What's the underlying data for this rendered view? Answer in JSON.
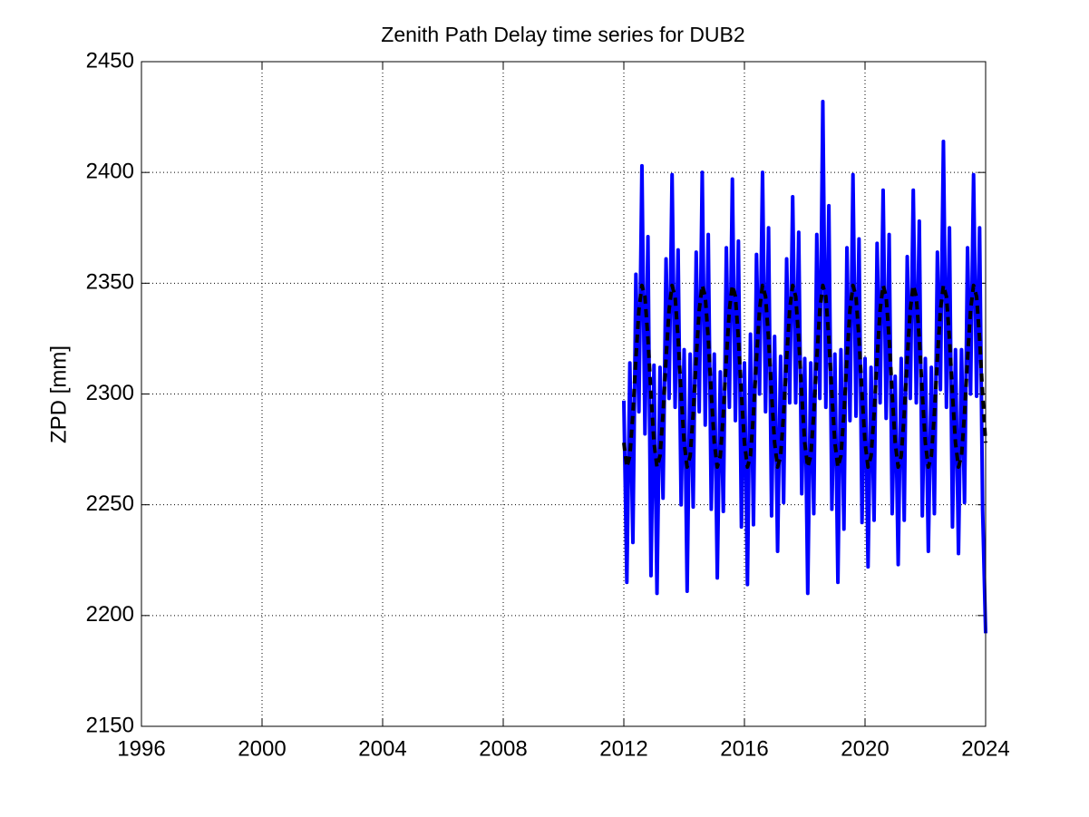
{
  "chart_data": {
    "type": "line",
    "title": "Zenith Path Delay time series for DUB2",
    "y_label": "ZPD [mm]",
    "xlim": [
      1996,
      2024
    ],
    "xticks": [
      1996,
      2000,
      2004,
      2008,
      2012,
      2016,
      2020,
      2024
    ],
    "ylim": [
      2150,
      2450
    ],
    "yticks": [
      2150,
      2200,
      2250,
      2300,
      2350,
      2400,
      2450
    ],
    "grid": true,
    "x": [
      2012,
      2012.1,
      2012.2,
      2012.3,
      2012.4,
      2012.5,
      2012.6,
      2012.7,
      2012.8,
      2012.9,
      2013,
      2013.1,
      2013.2,
      2013.3,
      2013.4,
      2013.5,
      2013.6,
      2013.7,
      2013.8,
      2013.9,
      2014,
      2014.1,
      2014.2,
      2014.3,
      2014.4,
      2014.5,
      2014.6,
      2014.7,
      2014.8,
      2014.9,
      2015,
      2015.1,
      2015.2,
      2015.3,
      2015.4,
      2015.5,
      2015.6,
      2015.7,
      2015.8,
      2015.9,
      2016,
      2016.1,
      2016.2,
      2016.3,
      2016.4,
      2016.5,
      2016.6,
      2016.7,
      2016.8,
      2016.9,
      2017,
      2017.1,
      2017.2,
      2017.3,
      2017.4,
      2017.5,
      2017.6,
      2017.7,
      2017.8,
      2017.9,
      2018,
      2018.1,
      2018.2,
      2018.3,
      2018.4,
      2018.5,
      2018.6,
      2018.7,
      2018.8,
      2018.9,
      2019,
      2019.1,
      2019.2,
      2019.3,
      2019.4,
      2019.5,
      2019.6,
      2019.7,
      2019.8,
      2019.9,
      2020,
      2020.1,
      2020.2,
      2020.3,
      2020.4,
      2020.5,
      2020.6,
      2020.7,
      2020.8,
      2020.9,
      2021,
      2021.1,
      2021.2,
      2021.3,
      2021.4,
      2021.5,
      2021.6,
      2021.7,
      2021.8,
      2021.9,
      2022,
      2022.1,
      2022.2,
      2022.3,
      2022.4,
      2022.5,
      2022.6,
      2022.7,
      2022.8,
      2022.9,
      2023,
      2023.1,
      2023.2,
      2023.3,
      2023.4,
      2023.5,
      2023.6,
      2023.7,
      2023.8,
      2023.9,
      2024
    ],
    "series": [
      {
        "color": "#0000ff",
        "line_style": "solid",
        "values": [
          2297,
          2215,
          2314,
          2233,
          2354,
          2292,
          2403,
          2282,
          2371,
          2218,
          2313,
          2210,
          2312,
          2253,
          2361,
          2298,
          2399,
          2294,
          2365,
          2250,
          2320,
          2211,
          2318,
          2249,
          2364,
          2292,
          2400,
          2286,
          2372,
          2248,
          2318,
          2217,
          2310,
          2247,
          2366,
          2294,
          2397,
          2288,
          2369,
          2240,
          2314,
          2214,
          2327,
          2241,
          2363,
          2300,
          2400,
          2292,
          2375,
          2245,
          2326,
          2229,
          2317,
          2251,
          2361,
          2296,
          2389,
          2296,
          2373,
          2255,
          2316,
          2210,
          2314,
          2246,
          2372,
          2298,
          2432,
          2294,
          2385,
          2248,
          2318,
          2215,
          2320,
          2239,
          2366,
          2288,
          2399,
          2290,
          2370,
          2242,
          2316,
          2222,
          2312,
          2243,
          2368,
          2296,
          2392,
          2289,
          2372,
          2246,
          2308,
          2223,
          2316,
          2243,
          2362,
          2298,
          2392,
          2296,
          2378,
          2245,
          2316,
          2229,
          2312,
          2246,
          2364,
          2302,
          2414,
          2294,
          2375,
          2240,
          2320,
          2228,
          2320,
          2251,
          2366,
          2300,
          2399,
          2299,
          2375,
          2248,
          2192
        ]
      },
      {
        "color": "#000000",
        "line_style": "dashed",
        "values": [
          2278,
          2267,
          2272,
          2291,
          2316,
          2338,
          2349,
          2344,
          2325,
          2300,
          2278,
          2267,
          2272,
          2291,
          2316,
          2338,
          2349,
          2344,
          2325,
          2300,
          2278,
          2267,
          2272,
          2291,
          2316,
          2338,
          2349,
          2344,
          2325,
          2300,
          2278,
          2267,
          2272,
          2291,
          2316,
          2338,
          2349,
          2344,
          2325,
          2300,
          2278,
          2267,
          2272,
          2291,
          2316,
          2338,
          2349,
          2344,
          2325,
          2300,
          2278,
          2267,
          2272,
          2291,
          2316,
          2338,
          2349,
          2344,
          2325,
          2300,
          2278,
          2267,
          2272,
          2291,
          2316,
          2338,
          2349,
          2344,
          2325,
          2300,
          2278,
          2267,
          2272,
          2291,
          2316,
          2338,
          2349,
          2344,
          2325,
          2300,
          2278,
          2267,
          2272,
          2291,
          2316,
          2338,
          2349,
          2344,
          2325,
          2300,
          2278,
          2267,
          2272,
          2291,
          2316,
          2338,
          2349,
          2344,
          2325,
          2300,
          2278,
          2267,
          2272,
          2291,
          2316,
          2338,
          2349,
          2344,
          2325,
          2300,
          2278,
          2267,
          2272,
          2291,
          2316,
          2338,
          2349,
          2344,
          2325,
          2300,
          2278
        ]
      }
    ]
  }
}
